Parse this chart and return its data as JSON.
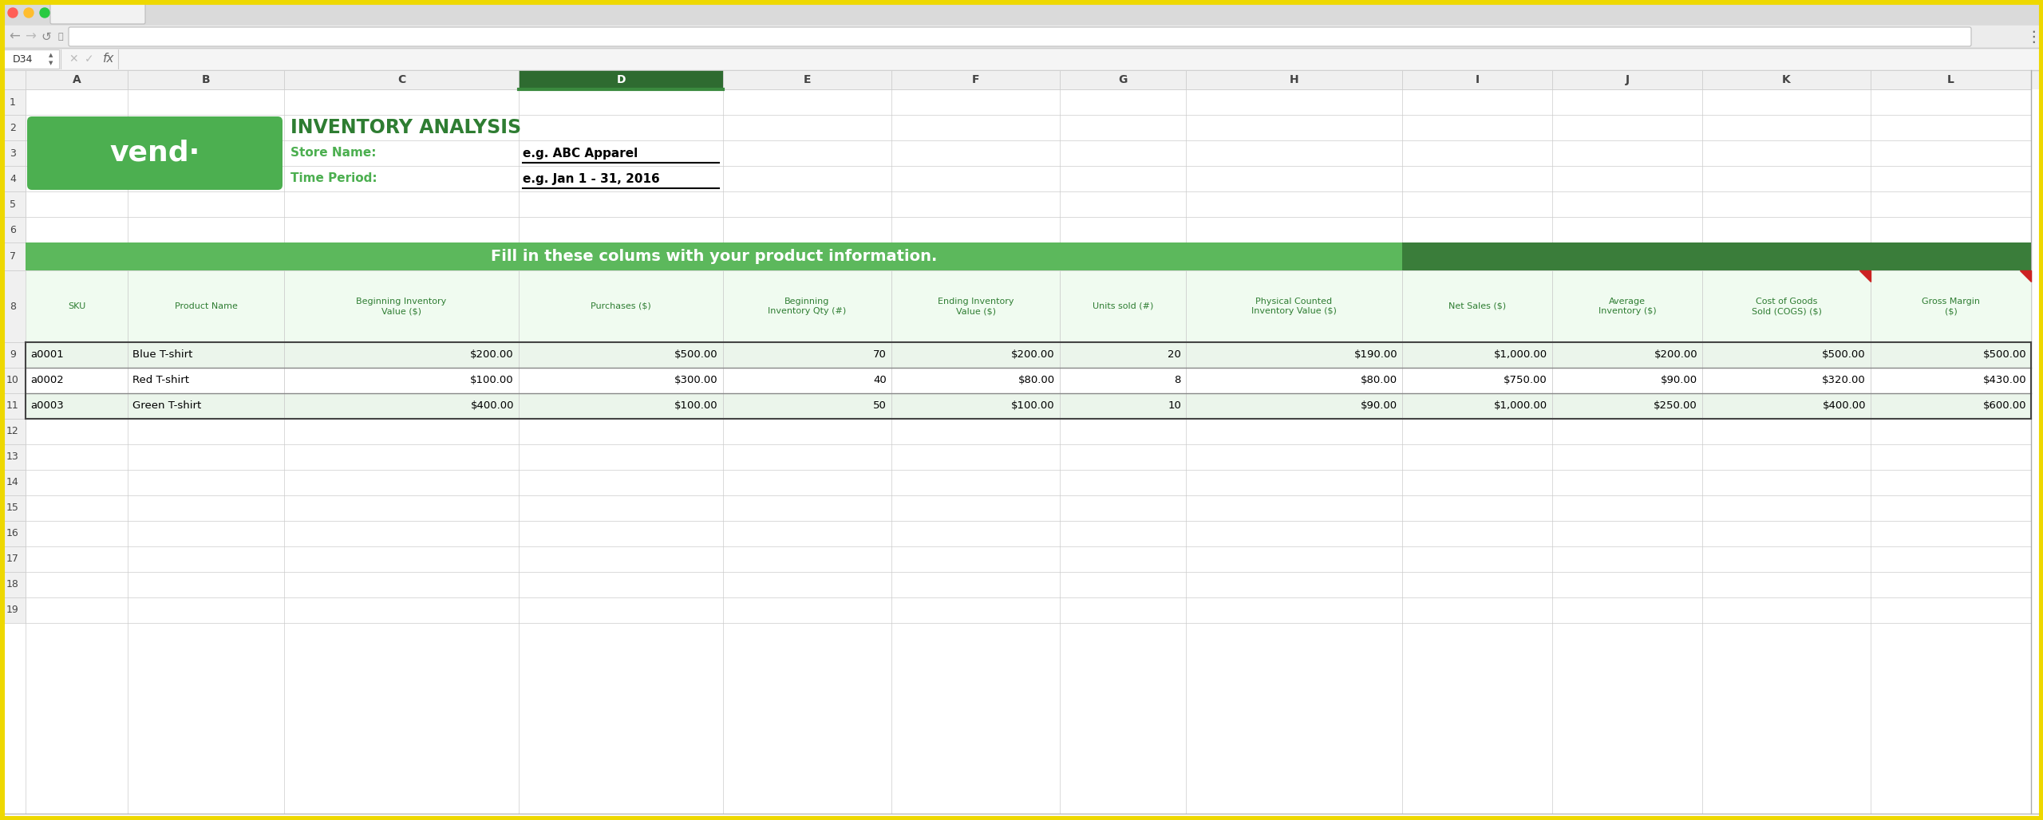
{
  "title": "INVENTORY ANALYSIS",
  "store_label": "Store Name:",
  "store_value": "e.g. ABC Apparel",
  "time_label": "Time Period:",
  "time_value": "e.g. Jan 1 - 31, 2016",
  "banner_text": "Fill in these colums with your product information.",
  "col_letters": [
    "A",
    "B",
    "C",
    "D",
    "E",
    "F",
    "G",
    "H",
    "I",
    "J",
    "K",
    "L"
  ],
  "row_numbers": [
    "1",
    "2",
    "3",
    "4",
    "5",
    "6",
    "7",
    "8",
    "9",
    "10",
    "11",
    "12",
    "13",
    "14",
    "15",
    "16",
    "17",
    "18",
    "19"
  ],
  "headers": [
    "SKU",
    "Product Name",
    "Beginning Inventory\nValue ($)",
    "Purchases ($)",
    "Beginning\nInventory Qty (#)",
    "Ending Inventory\nValue ($)",
    "Units sold (#)",
    "Physical Counted\nInventory Value ($)",
    "Net Sales ($)",
    "Average\nInventory ($)",
    "Cost of Goods\nSold (COGS) ($)",
    "Gross Margin\n($)"
  ],
  "data_rows": [
    [
      "a0001",
      "Blue T-shirt",
      "$200.00",
      "$500.00",
      "70",
      "$200.00",
      "20",
      "$190.00",
      "$1,000.00",
      "$200.00",
      "$500.00",
      "$500.00"
    ],
    [
      "a0002",
      "Red T-shirt",
      "$100.00",
      "$300.00",
      "40",
      "$80.00",
      "8",
      "$80.00",
      "$750.00",
      "$90.00",
      "$320.00",
      "$430.00"
    ],
    [
      "a0003",
      "Green T-shirt",
      "$400.00",
      "$100.00",
      "50",
      "$100.00",
      "10",
      "$90.00",
      "$1,000.00",
      "$250.00",
      "$400.00",
      "$600.00"
    ]
  ],
  "green_dark": "#2E7D32",
  "green_medium": "#4CAF50",
  "green_logo_bg": "#4CAF50",
  "green_header_text": "#4CAF50",
  "green_banner_light": "#5CB85C",
  "green_banner_dark": "#3A7D3A",
  "white": "#FFFFFF",
  "black": "#000000",
  "gray_col_header": "#EFEFEF",
  "gray_border": "#CCCCCC",
  "row_alt1": "#EBF5EB",
  "row_alt2": "#FFFFFF",
  "browser_bg": "#C8C8C8",
  "selected_col_header": "#2E6B30",
  "selected_col_underline": "#3A8A3E"
}
